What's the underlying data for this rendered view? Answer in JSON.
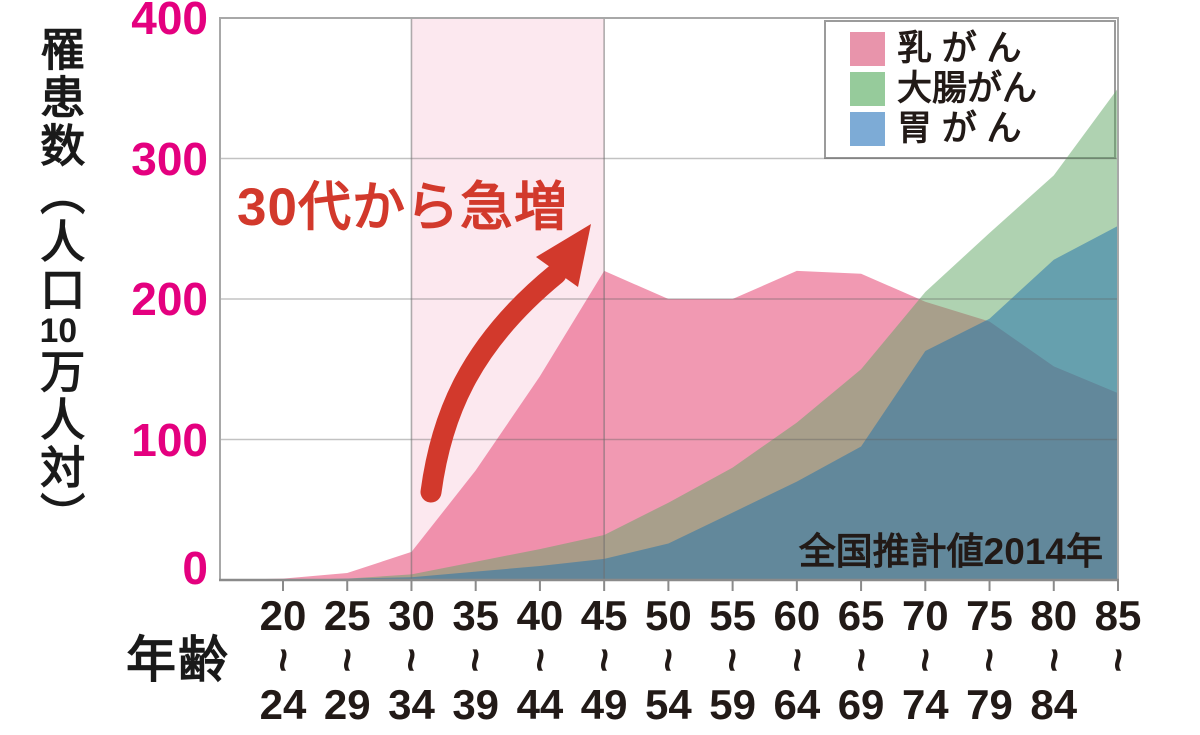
{
  "chart_data": {
    "type": "area",
    "overlapping_not_stacked": true,
    "title": "",
    "y_label": "罹患数（人口10万人対）",
    "y_label_parts": [
      "罹患数（人口",
      "10",
      "万人対）"
    ],
    "x_label": "年齢",
    "ylim": [
      0,
      400
    ],
    "y_ticks": [
      0,
      100,
      200,
      300,
      400
    ],
    "y_tick_color": "#e4007f",
    "range_separator": "~",
    "categories": [
      {
        "from": "20",
        "to": "24"
      },
      {
        "from": "25",
        "to": "29"
      },
      {
        "from": "30",
        "to": "34"
      },
      {
        "from": "35",
        "to": "39"
      },
      {
        "from": "40",
        "to": "44"
      },
      {
        "from": "45",
        "to": "49"
      },
      {
        "from": "50",
        "to": "54"
      },
      {
        "from": "55",
        "to": "59"
      },
      {
        "from": "60",
        "to": "64"
      },
      {
        "from": "65",
        "to": "69"
      },
      {
        "from": "70",
        "to": "74"
      },
      {
        "from": "75",
        "to": "79"
      },
      {
        "from": "80",
        "to": "84"
      },
      {
        "from": "85",
        "to": ""
      }
    ],
    "series": [
      {
        "name": "乳がん",
        "legend_label": "乳 が ん",
        "swatch_color": "#e894ab",
        "fill": "rgba(233,90,130,0.62)",
        "values": [
          1,
          5,
          20,
          78,
          145,
          220,
          200,
          200,
          220,
          218,
          198,
          184,
          152,
          133
        ]
      },
      {
        "name": "大腸がん",
        "legend_label": "大腸がん",
        "swatch_color": "#96cb9b",
        "fill": "rgba(95,165,100,0.5)",
        "values": [
          0,
          1,
          4,
          13,
          22,
          32,
          55,
          80,
          112,
          150,
          205,
          247,
          288,
          350
        ]
      },
      {
        "name": "胃がん",
        "legend_label": "胃 が ん",
        "swatch_color": "#7dabd6",
        "fill": "rgba(35,115,170,0.52)",
        "values": [
          0,
          1,
          2,
          6,
          10,
          15,
          26,
          48,
          70,
          95,
          163,
          186,
          228,
          252
        ]
      }
    ],
    "highlight_band": {
      "from_index": 2,
      "to_index": 5,
      "fill": "#fce8ef"
    },
    "annotation": {
      "text": "30代から急増",
      "color": "#d2392c"
    },
    "source_note": "全国推計値2014年",
    "grid": true,
    "legend_position": "top-right"
  }
}
